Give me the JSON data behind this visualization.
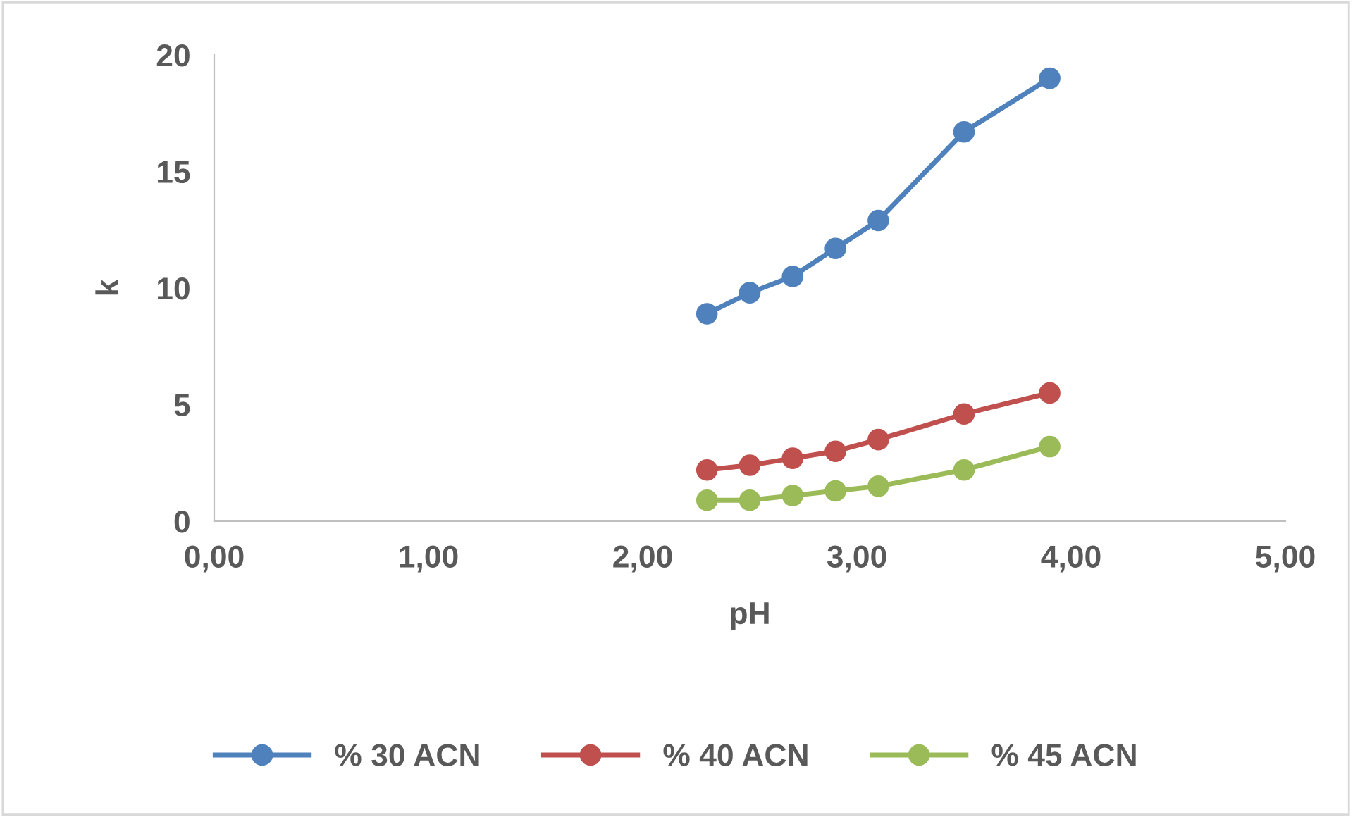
{
  "chart_data": {
    "type": "line",
    "xlabel": "pH",
    "ylabel": "k",
    "x": [
      2.3,
      2.5,
      2.7,
      2.9,
      3.1,
      3.5,
      3.9
    ],
    "series": [
      {
        "name": "% 30 ACN",
        "color": "#4f81bd",
        "values": [
          8.9,
          9.8,
          10.5,
          11.7,
          12.9,
          16.7,
          19.0
        ]
      },
      {
        "name": "% 40 ACN",
        "color": "#c0504d",
        "values": [
          2.2,
          2.4,
          2.7,
          3.0,
          3.5,
          4.6,
          5.5
        ]
      },
      {
        "name": "% 45 ACN",
        "color": "#9bbb59",
        "values": [
          0.9,
          0.9,
          1.1,
          1.3,
          1.5,
          2.2,
          3.2
        ]
      }
    ],
    "xlim": [
      0,
      5
    ],
    "xticks": [
      {
        "value": 0,
        "label": "0,00"
      },
      {
        "value": 1,
        "label": "1,00"
      },
      {
        "value": 2,
        "label": "2,00"
      },
      {
        "value": 3,
        "label": "3,00"
      },
      {
        "value": 4,
        "label": "4,00"
      },
      {
        "value": 5,
        "label": "5,00"
      }
    ],
    "ylim": [
      0,
      20
    ],
    "yticks": [
      0,
      5,
      10,
      15,
      20
    ],
    "grid": false,
    "legend": "bottom",
    "marker": "circle",
    "line_style": "solid"
  }
}
